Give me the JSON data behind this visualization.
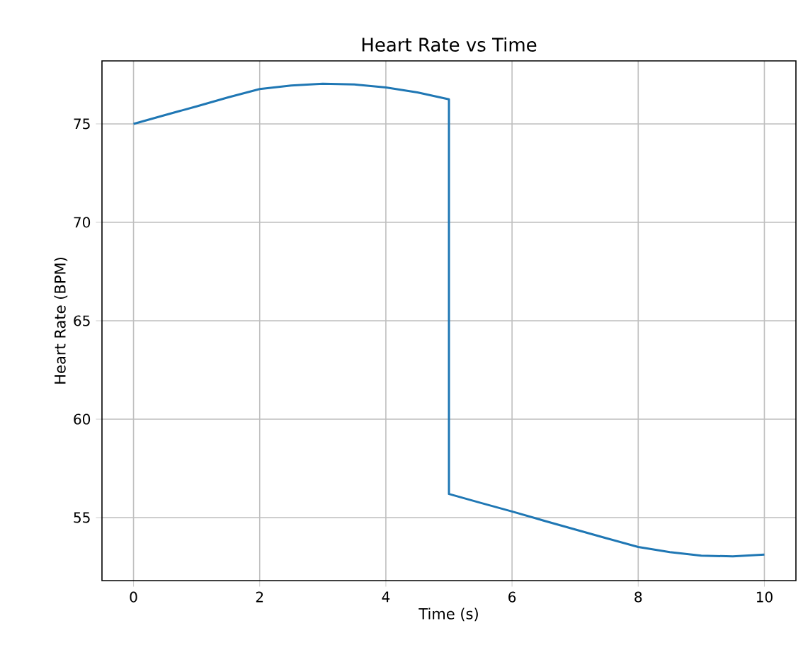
{
  "chart_data": {
    "type": "line",
    "title": "Heart Rate vs Time",
    "xlabel": "Time (s)",
    "ylabel": "Heart Rate (BPM)",
    "x": [
      0,
      0.5,
      1,
      1.5,
      2,
      2.5,
      3,
      3.5,
      4,
      4.5,
      5,
      5,
      5.5,
      6,
      6.5,
      7,
      7.5,
      8,
      8.5,
      9,
      9.5,
      10
    ],
    "series": [
      {
        "color": "#1f77b4",
        "values": [
          75,
          75.45,
          75.89,
          76.35,
          76.77,
          76.95,
          77.04,
          77.0,
          76.85,
          76.6,
          76.25,
          56.2,
          55.75,
          55.31,
          54.85,
          54.4,
          53.95,
          53.51,
          53.25,
          53.07,
          53.03,
          53.12
        ]
      }
    ],
    "xlim": [
      -0.5,
      10.5
    ],
    "ylim": [
      51.8,
      78.2
    ],
    "xticks": [
      0,
      2,
      4,
      6,
      8,
      10
    ],
    "yticks": [
      55,
      60,
      65,
      70,
      75
    ],
    "grid": true,
    "marker": "none",
    "line_style": "solid"
  }
}
